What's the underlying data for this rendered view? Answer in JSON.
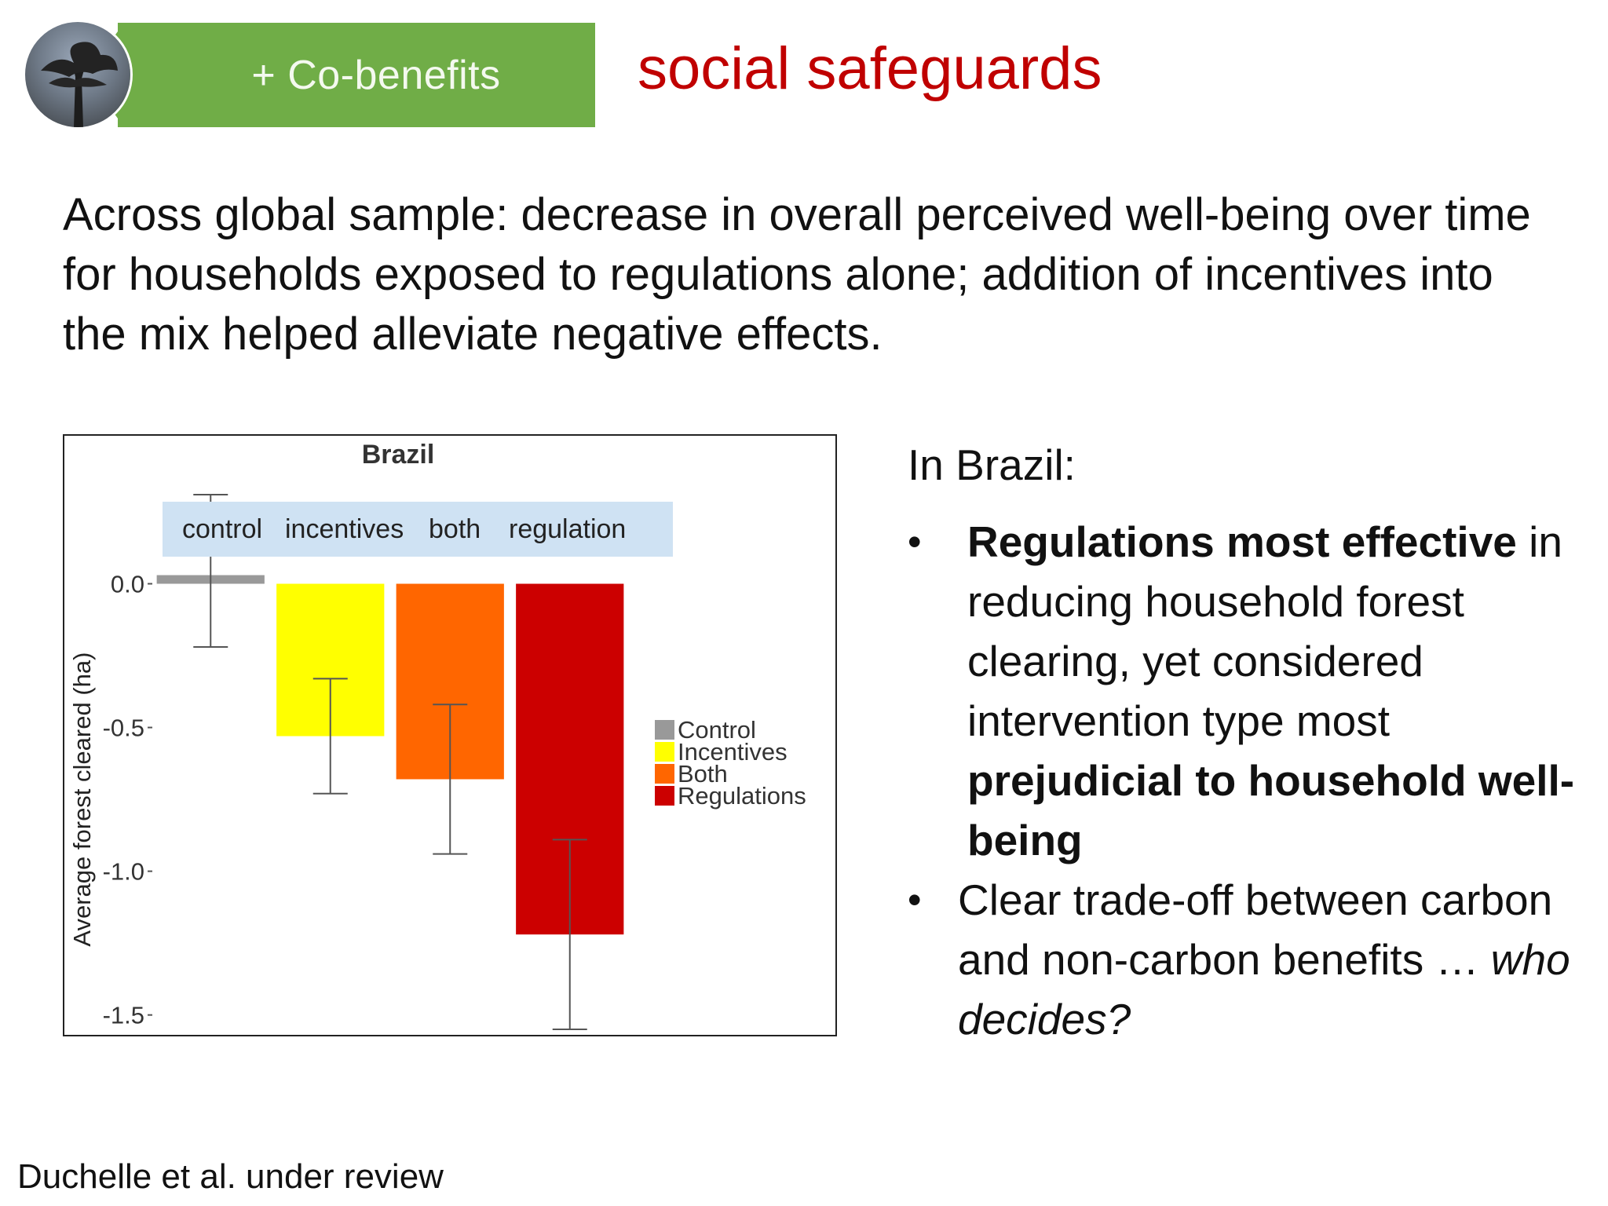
{
  "header": {
    "badge_label": "+ Co-benefits",
    "title": "social safeguards"
  },
  "intro_text": "Across global sample: decrease in overall perceived well-being over time for households exposed to regulations alone; addition of incentives into the mix helped alleviate negative effects.",
  "chart_data": {
    "type": "bar",
    "title": "Brazil",
    "ylabel": "Average forest cleared (ha)",
    "xlabel": "",
    "categories": [
      "Control",
      "Incentives",
      "Both",
      "Regulations"
    ],
    "values": [
      0.03,
      -0.53,
      -0.68,
      -1.22
    ],
    "error_low": [
      -0.22,
      -0.73,
      -0.94,
      -1.55
    ],
    "error_high": [
      0.31,
      -0.33,
      -0.42,
      -0.89
    ],
    "colors": [
      "#999999",
      "#ffff00",
      "#ff6600",
      "#cc0000"
    ],
    "ylim": [
      -1.55,
      0.31
    ],
    "yticks": [
      0.0,
      -0.5,
      -1.0,
      -1.5
    ],
    "ytick_labels": [
      "0.0",
      "-0.5",
      "-1.0",
      "-1.5"
    ],
    "legend": {
      "placement": "right",
      "entries": [
        "Control",
        "Incentives",
        "Both",
        "Regulations"
      ]
    },
    "annotation_labels": [
      "control",
      "incentives",
      "both",
      "regulation"
    ],
    "annotation_bg": "#cfe2f3",
    "grid": false
  },
  "right_panel": {
    "lead": "In Brazil:",
    "bullet1_bold_a": "Regulations most effective",
    "bullet1_text": " in reducing household forest clearing, yet considered intervention type most ",
    "bullet1_bold_b": "prejudicial to household well-being",
    "bullet2_text": "Clear trade-off between carbon and non-carbon benefits … ",
    "bullet2_italic": "who decides?"
  },
  "citation": "Duchelle et al. under review"
}
